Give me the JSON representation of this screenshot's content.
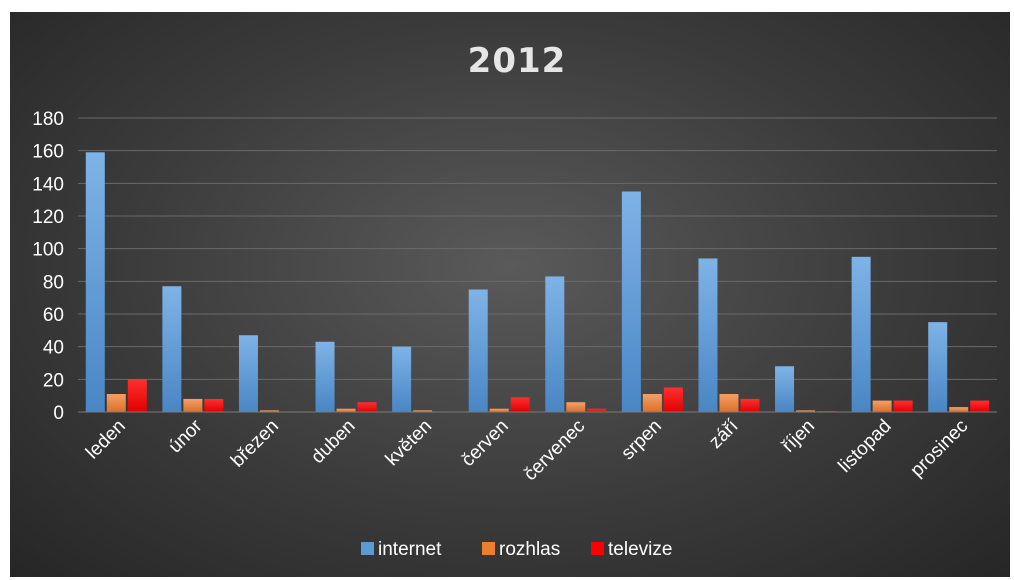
{
  "chart_data": {
    "type": "bar",
    "title": "2012",
    "xlabel": "",
    "ylabel": "",
    "categories": [
      "leden",
      "únor",
      "březen",
      "duben",
      "květen",
      "červen",
      "červenec",
      "srpen",
      "září",
      "říjen",
      "listopad",
      "prosinec"
    ],
    "series": [
      {
        "name": "internet",
        "color": "#5b9bd5",
        "values": [
          159,
          77,
          47,
          43,
          40,
          75,
          83,
          135,
          94,
          28,
          95,
          55
        ]
      },
      {
        "name": "rozhlas",
        "color": "#ed7d31",
        "values": [
          11,
          8,
          1,
          2,
          1,
          2,
          6,
          11,
          11,
          1,
          7,
          3
        ]
      },
      {
        "name": "televize",
        "color": "#ff0000",
        "values": [
          20,
          8,
          0,
          6,
          0,
          9,
          2,
          15,
          8,
          0.5,
          7,
          7
        ]
      }
    ],
    "ylim": [
      0,
      180
    ],
    "yticks": [
      0,
      20,
      40,
      60,
      80,
      100,
      120,
      140,
      160,
      180
    ],
    "grid": true,
    "legend_position": "bottom"
  }
}
